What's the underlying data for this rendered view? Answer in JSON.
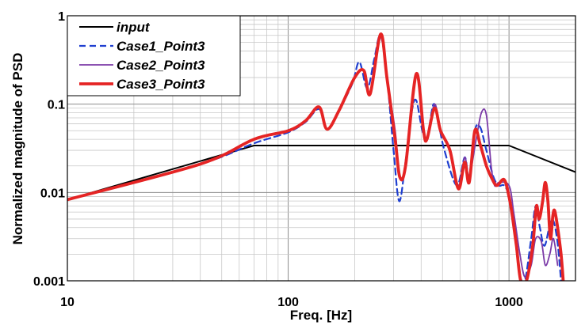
{
  "chart_data": {
    "type": "line",
    "xlabel": "Freq. [Hz]",
    "ylabel": "Normalized magnitude of PSD",
    "xscale": "log",
    "yscale": "log",
    "xlim": [
      10,
      2000
    ],
    "ylim": [
      0.001,
      1
    ],
    "x_ticks": [
      {
        "value": 10,
        "label": "10"
      },
      {
        "value": 100,
        "label": "100"
      },
      {
        "value": 1000,
        "label": "1000"
      }
    ],
    "y_ticks": [
      {
        "value": 0.001,
        "label": "0.001"
      },
      {
        "value": 0.01,
        "label": "0.01"
      },
      {
        "value": 0.1,
        "label": "0.1"
      },
      {
        "value": 1,
        "label": "1"
      }
    ],
    "grid": true,
    "legend_position": "top-left",
    "series": [
      {
        "name": "input",
        "color": "#000000",
        "style": "solid",
        "points": [
          [
            10,
            0.0083
          ],
          [
            70,
            0.034
          ],
          [
            1000,
            0.034
          ],
          [
            2000,
            0.017
          ]
        ]
      },
      {
        "name": "Case1_Point3",
        "color": "#1f3fd0",
        "style": "dashed",
        "points": [
          [
            10,
            0.0083
          ],
          [
            40,
            0.021
          ],
          [
            70,
            0.036
          ],
          [
            100,
            0.048
          ],
          [
            120,
            0.063
          ],
          [
            138,
            0.088
          ],
          [
            150,
            0.052
          ],
          [
            170,
            0.085
          ],
          [
            195,
            0.17
          ],
          [
            210,
            0.3
          ],
          [
            228,
            0.15
          ],
          [
            245,
            0.32
          ],
          [
            262,
            0.6
          ],
          [
            280,
            0.2
          ],
          [
            300,
            0.03
          ],
          [
            318,
            0.008
          ],
          [
            338,
            0.02
          ],
          [
            362,
            0.08
          ],
          [
            380,
            0.11
          ],
          [
            405,
            0.05
          ],
          [
            425,
            0.04
          ],
          [
            455,
            0.1
          ],
          [
            480,
            0.06
          ],
          [
            510,
            0.03
          ],
          [
            580,
            0.012
          ],
          [
            630,
            0.025
          ],
          [
            660,
            0.015
          ],
          [
            700,
            0.05
          ],
          [
            740,
            0.055
          ],
          [
            790,
            0.03
          ],
          [
            850,
            0.015
          ],
          [
            900,
            0.012
          ],
          [
            950,
            0.012
          ],
          [
            1000,
            0.009
          ],
          [
            1050,
            0.004
          ],
          [
            1120,
            0.0012
          ],
          [
            1180,
            0.001
          ],
          [
            1260,
            0.003
          ],
          [
            1320,
            0.007
          ],
          [
            1380,
            0.004
          ],
          [
            1450,
            0.0025
          ],
          [
            1560,
            0.005
          ],
          [
            1650,
            0.003
          ],
          [
            1720,
            0.001
          ]
        ]
      },
      {
        "name": "Case2_Point3",
        "color": "#7b3aa7",
        "style": "solid",
        "points": [
          [
            10,
            0.0083
          ],
          [
            40,
            0.021
          ],
          [
            70,
            0.04
          ],
          [
            100,
            0.05
          ],
          [
            120,
            0.065
          ],
          [
            138,
            0.092
          ],
          [
            150,
            0.053
          ],
          [
            170,
            0.085
          ],
          [
            200,
            0.2
          ],
          [
            220,
            0.24
          ],
          [
            235,
            0.13
          ],
          [
            262,
            0.6
          ],
          [
            280,
            0.2
          ],
          [
            305,
            0.05
          ],
          [
            320,
            0.015
          ],
          [
            340,
            0.02
          ],
          [
            380,
            0.22
          ],
          [
            410,
            0.05
          ],
          [
            425,
            0.04
          ],
          [
            460,
            0.1
          ],
          [
            490,
            0.05
          ],
          [
            540,
            0.03
          ],
          [
            590,
            0.012
          ],
          [
            630,
            0.025
          ],
          [
            660,
            0.015
          ],
          [
            710,
            0.04
          ],
          [
            750,
            0.08
          ],
          [
            790,
            0.075
          ],
          [
            830,
            0.02
          ],
          [
            860,
            0.012
          ],
          [
            900,
            0.013
          ],
          [
            1000,
            0.012
          ],
          [
            1050,
            0.006
          ],
          [
            1120,
            0.002
          ],
          [
            1180,
            0.0011
          ],
          [
            1260,
            0.0015
          ],
          [
            1320,
            0.003
          ],
          [
            1400,
            0.0028
          ],
          [
            1460,
            0.0015
          ],
          [
            1530,
            0.002
          ],
          [
            1590,
            0.003
          ],
          [
            1660,
            0.0015
          ]
        ]
      },
      {
        "name": "Case3_Point3",
        "color": "#e52424",
        "style": "solid",
        "points": [
          [
            10,
            0.0083
          ],
          [
            40,
            0.021
          ],
          [
            70,
            0.04
          ],
          [
            100,
            0.05
          ],
          [
            120,
            0.065
          ],
          [
            138,
            0.093
          ],
          [
            150,
            0.052
          ],
          [
            170,
            0.085
          ],
          [
            200,
            0.2
          ],
          [
            220,
            0.24
          ],
          [
            235,
            0.13
          ],
          [
            262,
            0.62
          ],
          [
            280,
            0.2
          ],
          [
            305,
            0.04
          ],
          [
            320,
            0.015
          ],
          [
            340,
            0.02
          ],
          [
            380,
            0.22
          ],
          [
            410,
            0.05
          ],
          [
            425,
            0.04
          ],
          [
            460,
            0.09
          ],
          [
            490,
            0.05
          ],
          [
            540,
            0.03
          ],
          [
            590,
            0.011
          ],
          [
            630,
            0.022
          ],
          [
            660,
            0.013
          ],
          [
            700,
            0.05
          ],
          [
            740,
            0.035
          ],
          [
            790,
            0.02
          ],
          [
            830,
            0.015
          ],
          [
            880,
            0.012
          ],
          [
            950,
            0.014
          ],
          [
            1000,
            0.009
          ],
          [
            1040,
            0.005
          ],
          [
            1080,
            0.0025
          ],
          [
            1130,
            0.001
          ],
          [
            1200,
            0.001
          ],
          [
            1280,
            0.0025
          ],
          [
            1330,
            0.007
          ],
          [
            1370,
            0.005
          ],
          [
            1420,
            0.008
          ],
          [
            1460,
            0.013
          ],
          [
            1500,
            0.008
          ],
          [
            1540,
            0.003
          ],
          [
            1580,
            0.0055
          ],
          [
            1610,
            0.0062
          ],
          [
            1660,
            0.004
          ],
          [
            1720,
            0.002
          ],
          [
            1760,
            0.001
          ]
        ]
      }
    ]
  }
}
